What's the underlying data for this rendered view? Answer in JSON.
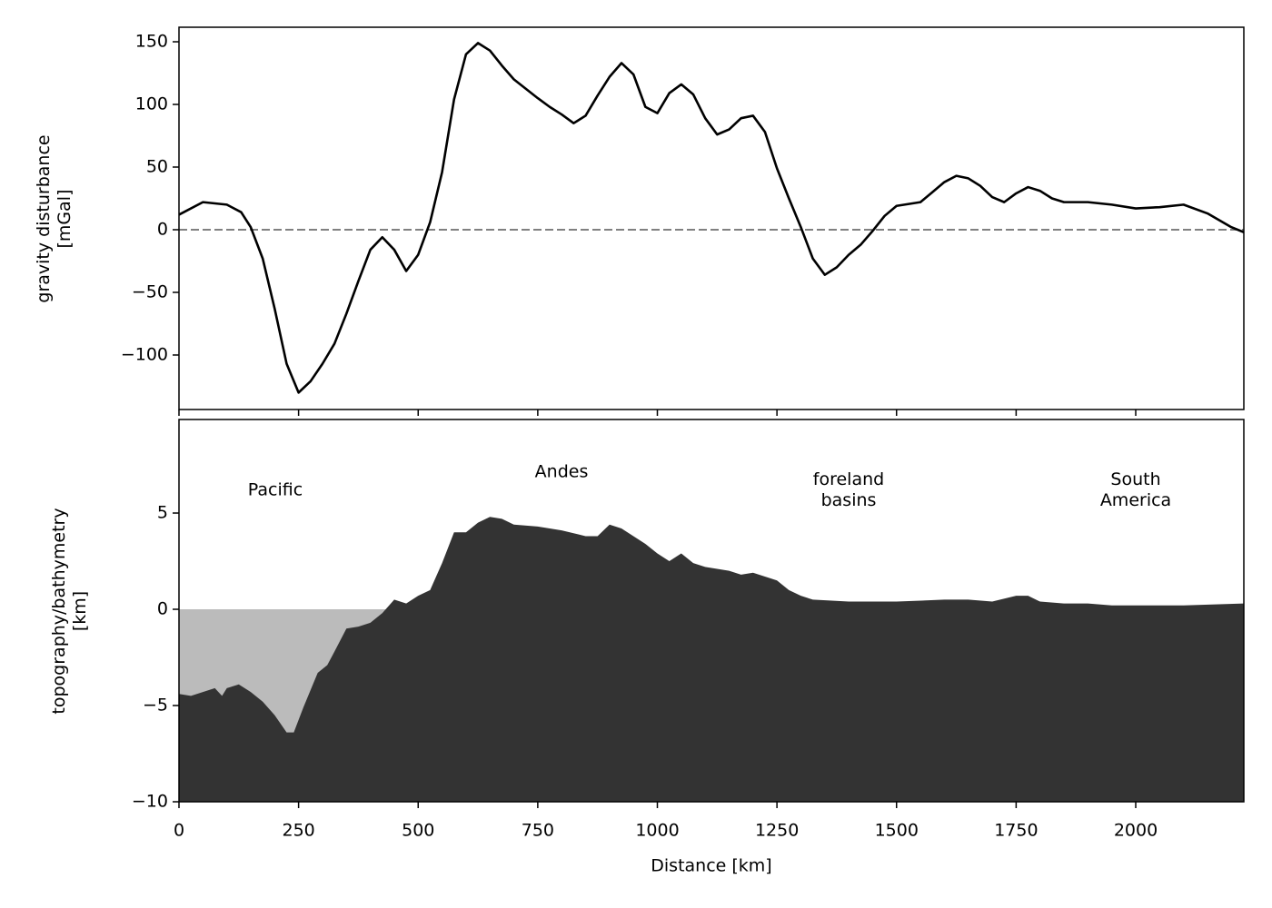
{
  "chart_data": [
    {
      "type": "line",
      "ylabel": "gravity disturbance\n[mGal]",
      "x": [
        0,
        50,
        100,
        130,
        150,
        175,
        200,
        225,
        250,
        275,
        300,
        325,
        350,
        375,
        400,
        425,
        450,
        475,
        500,
        525,
        550,
        575,
        600,
        625,
        650,
        675,
        700,
        750,
        775,
        800,
        825,
        850,
        875,
        900,
        925,
        950,
        975,
        1000,
        1025,
        1050,
        1075,
        1100,
        1125,
        1150,
        1175,
        1200,
        1225,
        1250,
        1275,
        1300,
        1325,
        1350,
        1375,
        1400,
        1425,
        1450,
        1475,
        1500,
        1550,
        1575,
        1600,
        1625,
        1650,
        1675,
        1700,
        1725,
        1750,
        1775,
        1800,
        1825,
        1850,
        1900,
        1950,
        2000,
        2050,
        2100,
        2150,
        2200,
        2226
      ],
      "series": [
        {
          "color": "#000000",
          "values": [
            12,
            22,
            20,
            14,
            2,
            -23,
            -63,
            -107,
            -130,
            -121,
            -107,
            -91,
            -67,
            -41,
            -16,
            -6,
            -16,
            -33,
            -20,
            6,
            46,
            104,
            140,
            149,
            143,
            131,
            120,
            105,
            98,
            92,
            85,
            91,
            107,
            122,
            133,
            124,
            98,
            93,
            109,
            116,
            108,
            89,
            76,
            80,
            89,
            91,
            78,
            49,
            25,
            2,
            -23,
            -36,
            -30,
            -20,
            -12,
            -1,
            11,
            19,
            22,
            30,
            38,
            43,
            41,
            35,
            26,
            22,
            29,
            34,
            31,
            25,
            22,
            22,
            20,
            17,
            18,
            20,
            13,
            2,
            -2
          ]
        }
      ],
      "xlim": [
        0,
        2226
      ],
      "ylim": [
        -143.5,
        161.6
      ],
      "yticks": [
        {
          "value": -100,
          "label": "−100"
        },
        {
          "value": -50,
          "label": "−50"
        },
        0,
        50,
        100,
        150
      ],
      "hline": 0,
      "hline_color": "#808080",
      "hline_style": "dashed"
    },
    {
      "type": "area",
      "xlabel": "Distance [km]",
      "ylabel": "topography/bathymetry\n[km]",
      "x": [
        0,
        25,
        50,
        75,
        90,
        100,
        125,
        150,
        175,
        200,
        225,
        240,
        260,
        290,
        310,
        325,
        350,
        375,
        400,
        425,
        450,
        475,
        500,
        525,
        550,
        575,
        600,
        625,
        650,
        675,
        700,
        750,
        800,
        850,
        875,
        900,
        925,
        950,
        975,
        1000,
        1025,
        1050,
        1075,
        1100,
        1150,
        1175,
        1200,
        1225,
        1250,
        1275,
        1300,
        1325,
        1400,
        1500,
        1600,
        1650,
        1700,
        1750,
        1775,
        1800,
        1850,
        1900,
        1950,
        2000,
        2100,
        2226
      ],
      "series": [
        {
          "color": "#333333",
          "values": [
            -4.4,
            -4.5,
            -4.3,
            -4.1,
            -4.5,
            -4.1,
            -3.9,
            -4.3,
            -4.8,
            -5.5,
            -6.4,
            -6.4,
            -5.1,
            -3.3,
            -2.9,
            -2.2,
            -1.0,
            -0.9,
            -0.7,
            -0.2,
            0.5,
            0.3,
            0.7,
            1.0,
            2.4,
            4.0,
            4.0,
            4.5,
            4.8,
            4.7,
            4.4,
            4.3,
            4.1,
            3.8,
            3.8,
            4.4,
            4.2,
            3.8,
            3.4,
            2.9,
            2.5,
            2.9,
            2.4,
            2.2,
            2.0,
            1.8,
            1.9,
            1.7,
            1.5,
            1.0,
            0.7,
            0.5,
            0.4,
            0.4,
            0.5,
            0.5,
            0.4,
            0.7,
            0.7,
            0.4,
            0.3,
            0.3,
            0.2,
            0.2,
            0.2,
            0.3
          ]
        }
      ],
      "sea_color": "#bbbbbb",
      "xlim": [
        0,
        2226
      ],
      "ylim": [
        -10,
        9.86
      ],
      "xticks": [
        0,
        250,
        500,
        750,
        1000,
        1250,
        1500,
        1750,
        2000
      ],
      "yticks": [
        {
          "value": -10,
          "label": "−10"
        },
        {
          "value": -5,
          "label": "−5"
        },
        0,
        5
      ],
      "annotations": [
        {
          "text": "Pacific"
        },
        {
          "text": "Andes"
        },
        {
          "text": "foreland\nbasins"
        },
        {
          "text": "South\nAmerica"
        }
      ]
    }
  ]
}
